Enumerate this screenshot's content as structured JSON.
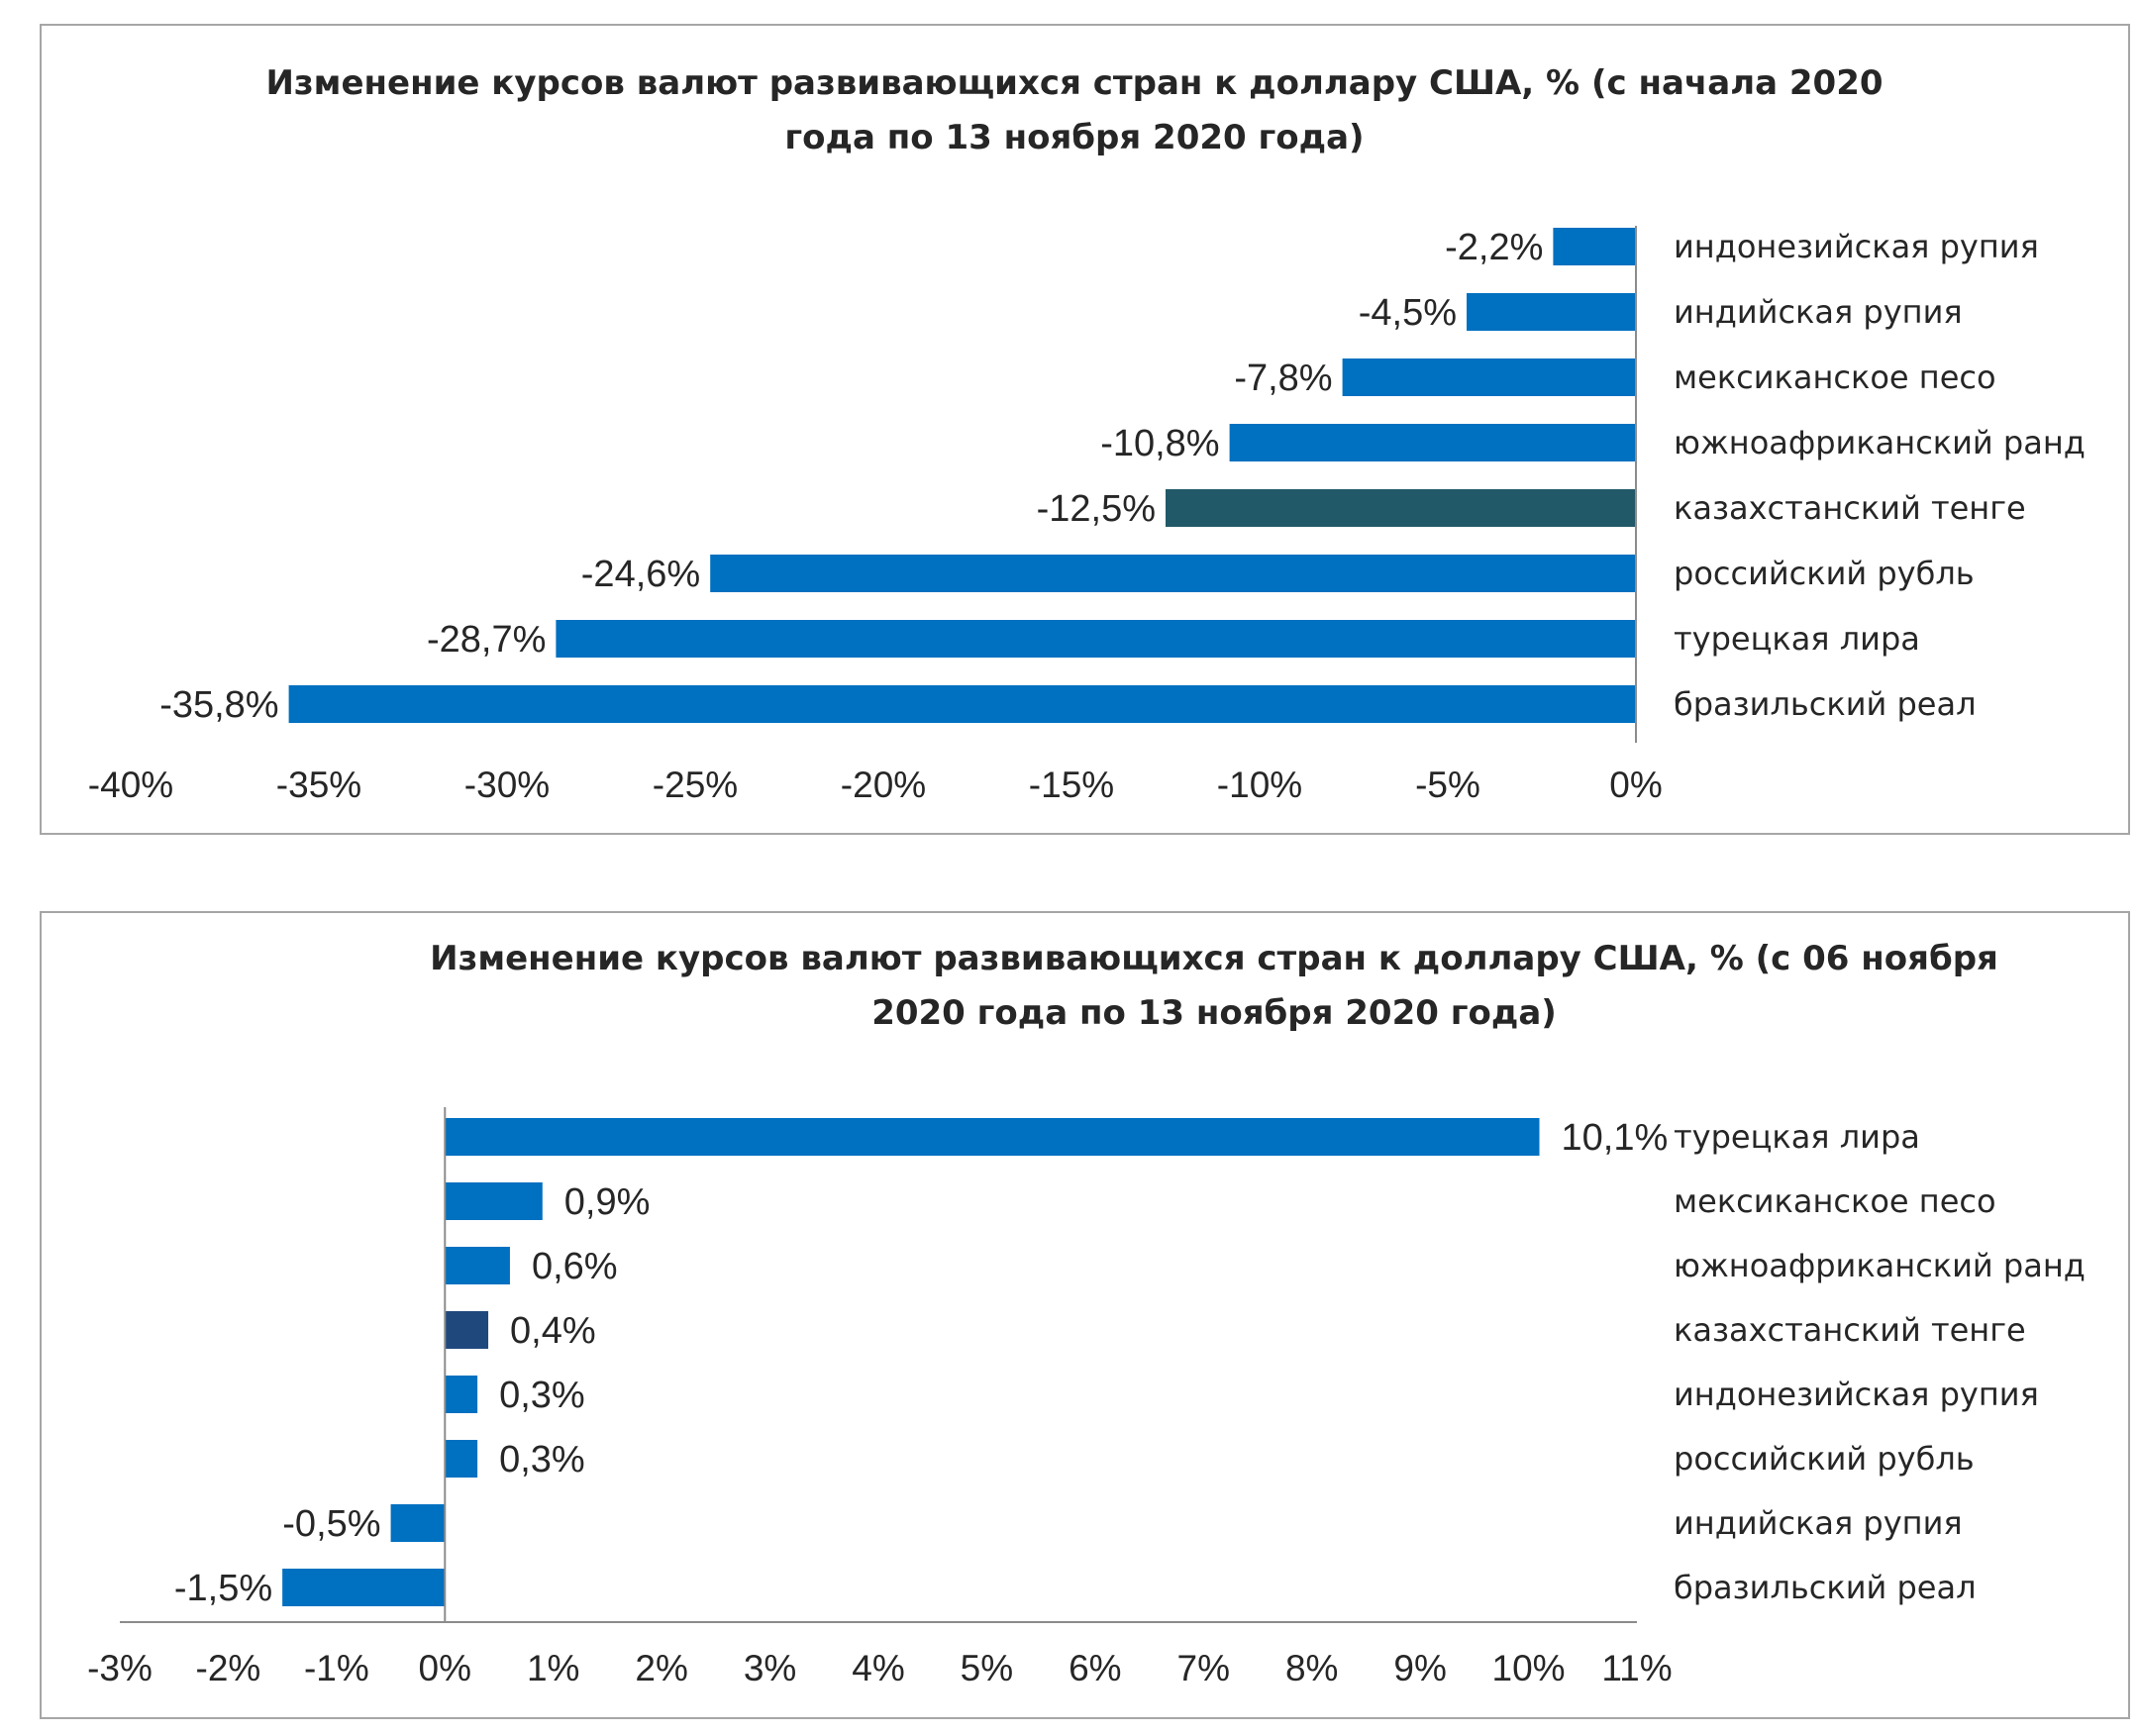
{
  "chart_data": [
    {
      "type": "bar",
      "orientation": "horizontal",
      "title_lines": [
        "Изменение курсов валют развивающихся стран к доллару США, % (с начала 2020",
        "года по 13 ноября 2020 года)"
      ],
      "categories": [
        "индонезийская рупия",
        "индийская рупия",
        "мексиканское песо",
        "южноафриканский ранд",
        "казахстанский тенге",
        "российский рубль",
        "турецкая лира",
        "бразильский реал"
      ],
      "values": [
        -2.2,
        -4.5,
        -7.8,
        -10.8,
        -12.5,
        -24.6,
        -28.7,
        -35.8
      ],
      "value_labels": [
        "-2,2%",
        "-4,5%",
        "-7,8%",
        "-10,8%",
        "-12,5%",
        "-24,6%",
        "-28,7%",
        "-35,8%"
      ],
      "xlim": [
        -40,
        0
      ],
      "xticks": [
        -40,
        -35,
        -30,
        -25,
        -20,
        -15,
        -10,
        -5,
        0
      ],
      "xtick_labels": [
        "-40%",
        "-35%",
        "-30%",
        "-25%",
        "-20%",
        "-15%",
        "-10%",
        "-5%",
        "0%"
      ],
      "colors": [
        "#0070C0",
        "#0070C0",
        "#0070C0",
        "#0070C0",
        "#215968",
        "#0070C0",
        "#0070C0",
        "#0070C0"
      ],
      "grid": false,
      "legend": "none"
    },
    {
      "type": "bar",
      "orientation": "horizontal",
      "title_lines": [
        "Изменение курсов валют развивающихся стран к доллару США, % (с 06 ноября",
        "2020 года по 13 ноября 2020 года)"
      ],
      "categories": [
        "турецкая лира",
        "мексиканское песо",
        "южноафриканский ранд",
        "казахстанский тенге",
        "индонезийская рупия",
        "российский рубль",
        "индийская рупия",
        "бразильский реал"
      ],
      "values": [
        10.1,
        0.9,
        0.6,
        0.4,
        0.3,
        0.3,
        -0.5,
        -1.5
      ],
      "value_labels": [
        "10,1%",
        "0,9%",
        "0,6%",
        "0,4%",
        "0,3%",
        "0,3%",
        "-0,5%",
        "-1,5%"
      ],
      "xlim": [
        -3,
        11
      ],
      "xticks": [
        -3,
        -2,
        -1,
        0,
        1,
        2,
        3,
        4,
        5,
        6,
        7,
        8,
        9,
        10,
        11
      ],
      "xtick_labels": [
        "-3%",
        "-2%",
        "-1%",
        "0%",
        "1%",
        "2%",
        "3%",
        "4%",
        "5%",
        "6%",
        "7%",
        "8%",
        "9%",
        "10%",
        "11%"
      ],
      "colors": [
        "#0070C0",
        "#0070C0",
        "#0070C0",
        "#1F497D",
        "#0070C0",
        "#0070C0",
        "#0070C0",
        "#0070C0"
      ],
      "grid": false,
      "legend": "none"
    }
  ]
}
